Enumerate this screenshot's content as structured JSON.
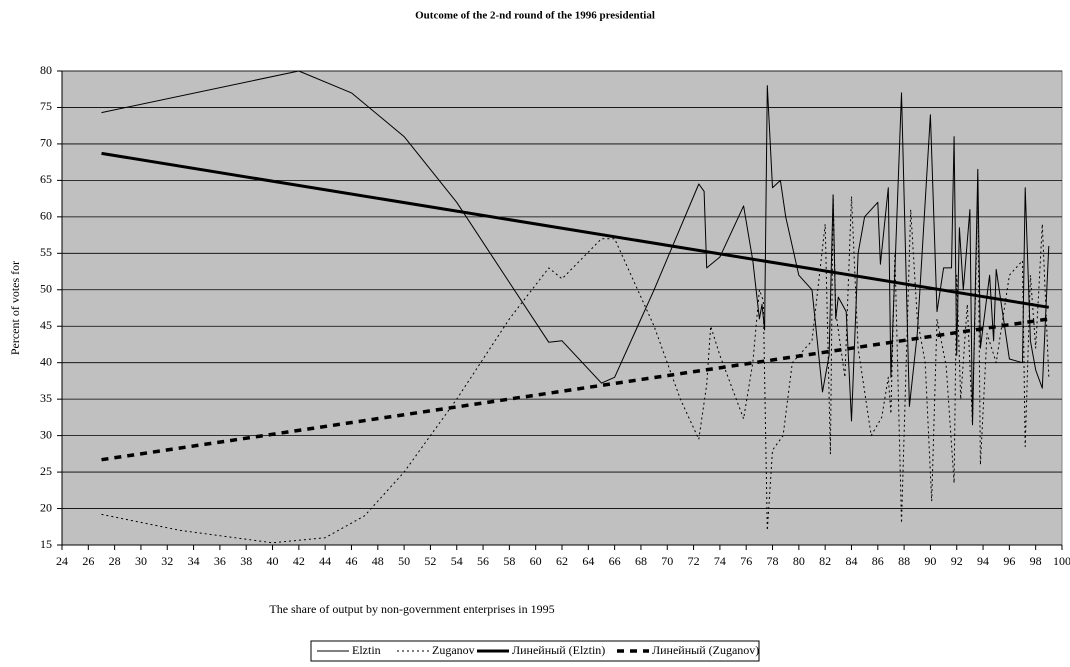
{
  "chart_data": {
    "type": "line",
    "title": "Outcome of the 2-nd round of the 1996 presidential",
    "x_label": "The share of output by non-government enterprises in 1995",
    "y_label": "Percent of votes for",
    "xlim": [
      24,
      100
    ],
    "xticks": [
      24,
      26,
      28,
      30,
      32,
      34,
      36,
      38,
      40,
      42,
      44,
      46,
      48,
      50,
      52,
      54,
      56,
      58,
      60,
      62,
      64,
      66,
      68,
      70,
      72,
      74,
      76,
      78,
      80,
      82,
      84,
      86,
      88,
      90,
      92,
      94,
      96,
      98,
      100
    ],
    "ylim": [
      15,
      80
    ],
    "yticks": [
      15,
      20,
      25,
      30,
      35,
      40,
      45,
      50,
      55,
      60,
      65,
      70,
      75,
      80
    ],
    "grid": true,
    "legend": "bottom",
    "series": [
      {
        "name": "Elztin",
        "color": "#000000",
        "dash": "none",
        "width": 1,
        "x": [
          27,
          42,
          46,
          50,
          54,
          58,
          61,
          62,
          65,
          66,
          69,
          72.4,
          72.8,
          73,
          74,
          75.8,
          76.5,
          77,
          77.2,
          77.4,
          77.6,
          78,
          78.6,
          79,
          80,
          81,
          81.8,
          82.3,
          82.6,
          82.8,
          83,
          83.6,
          84,
          84.5,
          85,
          86,
          86.2,
          86.8,
          87,
          87.8,
          88.4,
          89,
          90,
          90.5,
          91,
          91.6,
          91.8,
          92,
          92.2,
          92.5,
          93,
          93.2,
          93.6,
          93.8,
          94.5,
          94.8,
          95,
          96,
          97,
          97.2,
          97.6,
          98,
          98.5,
          99
        ],
        "values": [
          74.3,
          80,
          77,
          71,
          62,
          51,
          42.8,
          43,
          37.2,
          38,
          50,
          64.5,
          63.5,
          53,
          54.5,
          61.5,
          54,
          46,
          48,
          44.5,
          78,
          64,
          65,
          60,
          52,
          50,
          36,
          41,
          63,
          46,
          49,
          47,
          32,
          55,
          60,
          62,
          53.5,
          64,
          38,
          77,
          34,
          44,
          74,
          47,
          53,
          53,
          71,
          41,
          58.5,
          50,
          61,
          31.5,
          66.5,
          42,
          52,
          43,
          52.8,
          40.5,
          40,
          64,
          43,
          39,
          36.5,
          56
        ]
      },
      {
        "name": "Zuganov",
        "color": "#000000",
        "dash": "2,3",
        "width": 1,
        "x": [
          27,
          33,
          40,
          44,
          47,
          50,
          54,
          58,
          61,
          62,
          65,
          66,
          69,
          71,
          72.4,
          73,
          73.3,
          74,
          75.8,
          76.5,
          77,
          77.3,
          77.6,
          78,
          78.8,
          79.5,
          81,
          82,
          82.4,
          82.6,
          82.8,
          83.5,
          84,
          84.5,
          85.5,
          86.3,
          86.8,
          87,
          87.3,
          87.8,
          88.5,
          89,
          89.6,
          90.1,
          90.5,
          91.2,
          91.8,
          92,
          92.3,
          92.8,
          93.2,
          93.6,
          93.8,
          94.3,
          95,
          96,
          97,
          97.2,
          97.6,
          98,
          98.5,
          99
        ],
        "values": [
          19.2,
          17,
          15.3,
          16,
          19,
          25,
          35,
          46,
          53,
          51.5,
          57,
          57,
          45,
          35,
          29.5,
          37,
          45,
          41,
          32.3,
          40,
          50,
          48.5,
          17,
          28,
          30,
          40,
          43,
          59,
          27.5,
          63,
          47,
          38,
          62.8,
          42,
          30,
          32.5,
          38,
          33,
          55,
          18,
          61,
          46,
          40,
          21,
          46,
          39.5,
          23.5,
          52,
          35,
          48,
          31.5,
          63,
          26,
          44,
          40,
          52,
          54,
          28.5,
          52,
          42,
          59,
          38
        ]
      },
      {
        "name": "Линейный (Elztin)",
        "color": "#000000",
        "dash": "none",
        "width": 3,
        "x": [
          27,
          99
        ],
        "values": [
          68.7,
          47.6
        ]
      },
      {
        "name": "Линейный (Zuganov)",
        "color": "#000000",
        "dash": "7,6",
        "width": 3.5,
        "x": [
          27,
          99
        ],
        "values": [
          26.7,
          46
        ]
      }
    ]
  }
}
